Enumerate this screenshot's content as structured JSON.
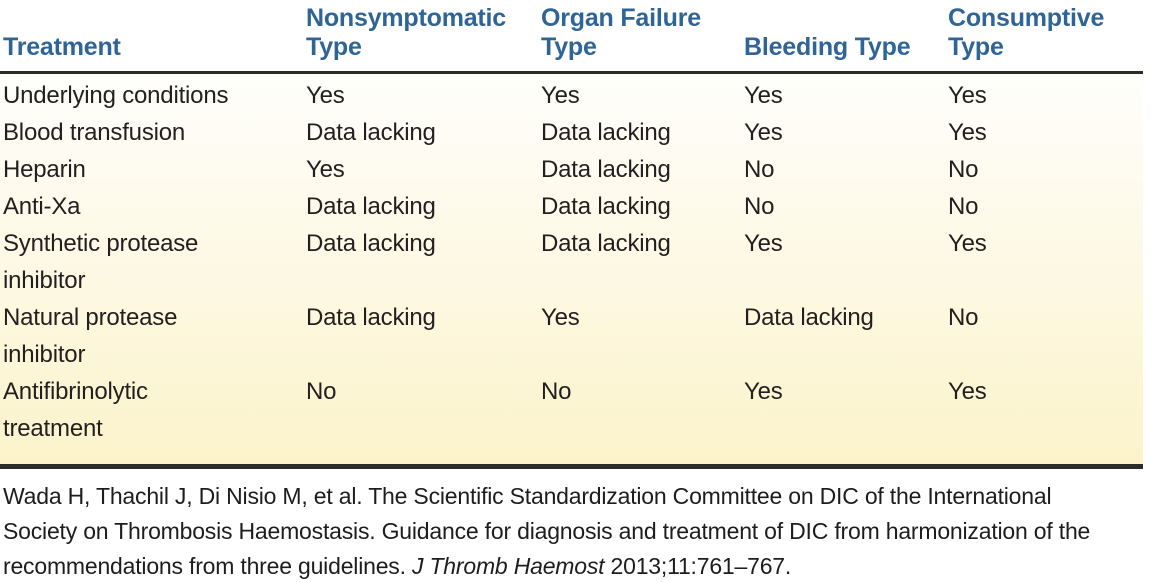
{
  "table": {
    "columns": [
      {
        "label": "Treatment"
      },
      {
        "label": "Nonsymptomatic\nType"
      },
      {
        "label": "Organ Failure\nType"
      },
      {
        "label": "Bleeding Type"
      },
      {
        "label": "Consumptive\nType"
      }
    ],
    "rows": [
      {
        "treatment": "Underlying conditions",
        "values": [
          "Yes",
          "Yes",
          "Yes",
          "Yes"
        ]
      },
      {
        "treatment": "Blood transfusion",
        "values": [
          "Data lacking",
          "Data lacking",
          "Yes",
          "Yes"
        ]
      },
      {
        "treatment": "Heparin",
        "values": [
          "Yes",
          "Data lacking",
          "No",
          "No"
        ]
      },
      {
        "treatment": "Anti-Xa",
        "values": [
          "Data lacking",
          "Data lacking",
          "No",
          "No"
        ]
      },
      {
        "treatment": "Synthetic protease\ninhibitor",
        "values": [
          "Data lacking",
          "Data lacking",
          "Yes",
          "Yes"
        ]
      },
      {
        "treatment": "Natural protease\ninhibitor",
        "values": [
          "Data lacking",
          "Yes",
          "Data lacking",
          "No"
        ]
      },
      {
        "treatment": "Antifibrinolytic\ntreatment",
        "values": [
          "No",
          "No",
          "Yes",
          "Yes"
        ]
      }
    ]
  },
  "citation": {
    "line1": "Wada H, Thachil J, Di Nisio M, et al. The Scientific Standardization Committee on DIC of the International",
    "line2": "Society on Thrombosis Haemostasis. Guidance for diagnosis and treatment of DIC from harmonization of the",
    "line3_prefix": "recommendations from three guidelines. ",
    "line3_journal": "J Thromb Haemost",
    "line3_suffix": " 2013;11:761–767."
  },
  "colors": {
    "header_text": "#2e6496",
    "body_text": "#231f20",
    "rule": "#2b2b2b",
    "bg_top": "#fefefb",
    "bg_mid": "#fdf8e2",
    "bg_bottom": "#fcf3ca"
  }
}
